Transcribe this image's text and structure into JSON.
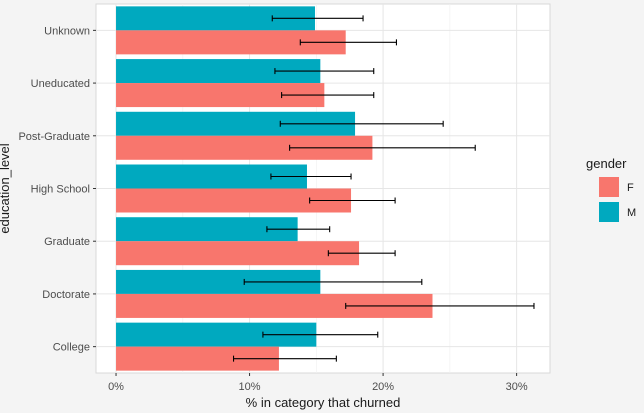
{
  "chart_data": {
    "type": "bar",
    "orientation": "horizontal",
    "categories": [
      "Unknown",
      "Uneducated",
      "Post-Graduate",
      "High School",
      "Graduate",
      "Doctorate",
      "College"
    ],
    "series": [
      {
        "name": "F",
        "color": "#f8766d",
        "values": [
          17.2,
          15.6,
          19.2,
          17.6,
          18.2,
          23.7,
          12.2
        ],
        "error_low": [
          13.8,
          12.4,
          13.0,
          14.5,
          15.9,
          17.2,
          8.8
        ],
        "error_high": [
          21.0,
          19.3,
          26.9,
          20.9,
          20.9,
          31.3,
          16.5
        ]
      },
      {
        "name": "M",
        "color": "#00a9bf",
        "values": [
          14.9,
          15.3,
          17.9,
          14.3,
          13.6,
          15.3,
          15.0
        ],
        "error_low": [
          11.7,
          11.9,
          12.3,
          11.6,
          11.3,
          9.6,
          11.0
        ],
        "error_high": [
          18.5,
          19.3,
          24.5,
          17.6,
          16.0,
          22.9,
          19.6
        ]
      }
    ],
    "xlabel": "% in category that churned",
    "ylabel": "education_level",
    "xlim": [
      -1.5,
      32.5
    ],
    "x_ticks": [
      0,
      10,
      20,
      30
    ],
    "x_tick_labels": [
      "0%",
      "10%",
      "20%",
      "30%"
    ],
    "legend": {
      "title": "gender",
      "position": "right"
    },
    "grid": true
  }
}
